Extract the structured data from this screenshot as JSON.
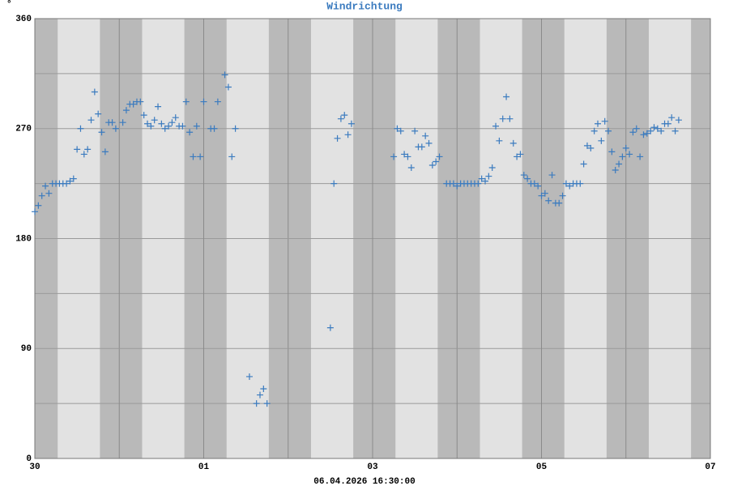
{
  "chart_data": {
    "type": "scatter",
    "title": "Windrichtung",
    "y_unit": "°",
    "footer": "06.04.2026 16:30:00",
    "color": "#3b7bbf",
    "marker": "+",
    "grid": true,
    "xlim": [
      0,
      192
    ],
    "xticks": [
      {
        "value": 0,
        "label": "30"
      },
      {
        "value": 48,
        "label": "01"
      },
      {
        "value": 96,
        "label": "03"
      },
      {
        "value": 144,
        "label": "05"
      },
      {
        "value": 192,
        "label": "07"
      }
    ],
    "minor_xticks": [
      24,
      72,
      120,
      168
    ],
    "ylim": [
      0,
      360
    ],
    "yticks": [
      0,
      90,
      180,
      270,
      360
    ],
    "minor_yticks": [
      45,
      135,
      225,
      315
    ],
    "x": [
      0,
      1,
      2,
      3,
      4,
      5,
      6,
      7,
      8,
      9,
      10,
      11,
      12,
      13,
      14,
      15,
      16,
      17,
      18,
      19,
      20,
      21,
      22,
      23,
      25,
      26,
      27,
      28,
      29,
      30,
      31,
      32,
      33,
      34,
      35,
      36,
      37,
      38,
      39,
      40,
      41,
      42,
      43,
      44,
      45,
      46,
      47,
      48,
      50,
      51,
      52,
      54,
      55,
      56,
      57,
      61,
      63,
      64,
      65,
      66,
      84,
      85,
      86,
      87,
      88,
      89,
      90,
      102,
      103,
      104,
      105,
      106,
      107,
      108,
      109,
      110,
      111,
      112,
      113,
      114,
      115,
      117,
      118,
      119,
      120,
      121,
      122,
      123,
      124,
      125,
      126,
      127,
      128,
      129,
      130,
      131,
      132,
      133,
      134,
      135,
      136,
      137,
      138,
      139,
      140,
      141,
      142,
      143,
      144,
      145,
      146,
      147,
      148,
      149,
      150,
      151,
      152,
      153,
      154,
      155,
      156,
      157,
      158,
      159,
      160,
      161,
      162,
      163,
      164,
      165,
      166,
      167,
      168,
      169,
      170,
      171,
      172,
      173,
      174,
      175,
      176,
      177,
      178,
      179,
      180,
      181,
      182,
      183
    ],
    "values": [
      202,
      207,
      215,
      223,
      217,
      225,
      225,
      225,
      225,
      225,
      227,
      229,
      253,
      270,
      249,
      253,
      277,
      300,
      282,
      267,
      251,
      275,
      275,
      270,
      275,
      285,
      290,
      290,
      292,
      292,
      281,
      274,
      272,
      277,
      288,
      274,
      270,
      272,
      275,
      279,
      272,
      272,
      292,
      267,
      247,
      272,
      247,
      292,
      270,
      270,
      292,
      314,
      304,
      247,
      270,
      67,
      45,
      52,
      57,
      45,
      107,
      225,
      262,
      278,
      281,
      265,
      274,
      247,
      270,
      268,
      249,
      247,
      238,
      268,
      255,
      255,
      264,
      258,
      240,
      243,
      247,
      225,
      225,
      225,
      223,
      225,
      225,
      225,
      225,
      225,
      225,
      229,
      227,
      231,
      238,
      272,
      260,
      278,
      296,
      278,
      258,
      247,
      249,
      232,
      229,
      225,
      225,
      223,
      215,
      217,
      211,
      232,
      209,
      209,
      215,
      225,
      223,
      225,
      225,
      225,
      241,
      256,
      254,
      268,
      274,
      260,
      276,
      268,
      251,
      236,
      241,
      247,
      254,
      249,
      267,
      270,
      247,
      265,
      266,
      268,
      271,
      270,
      268,
      274,
      274,
      279,
      268,
      277
    ]
  }
}
